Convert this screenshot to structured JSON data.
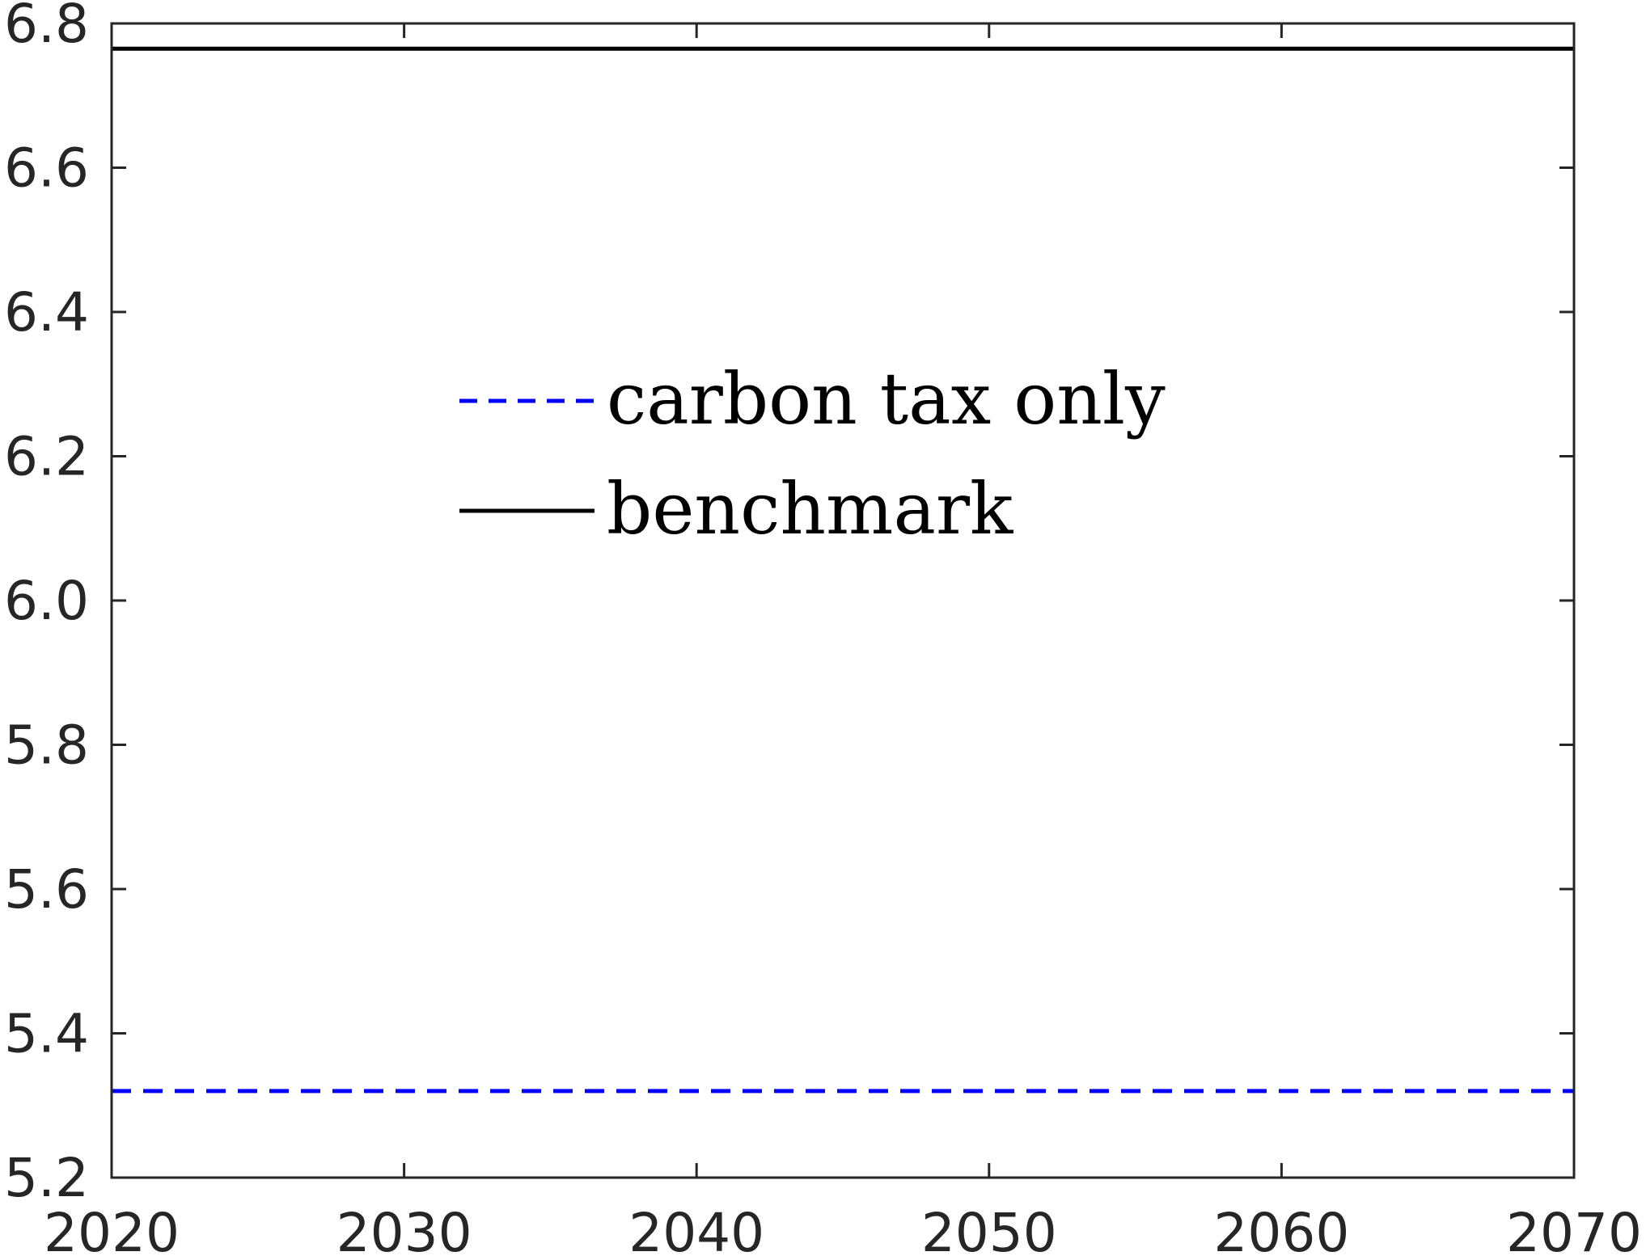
{
  "chart_data": {
    "type": "line",
    "title": "",
    "xlabel": "",
    "ylabel": "",
    "xlim": [
      2020,
      2070
    ],
    "ylim": [
      5.2,
      6.8
    ],
    "xticks": [
      "2020",
      "2030",
      "2040",
      "2050",
      "2060",
      "2070"
    ],
    "yticks": [
      "5.2",
      "5.4",
      "5.6",
      "5.8",
      "6.0",
      "6.2",
      "6.4",
      "6.6",
      "6.8"
    ],
    "grid": false,
    "legend_position": "upper-center",
    "series": [
      {
        "name": "carbon tax only",
        "style": "dashed",
        "color": "#0000ff",
        "x": [
          2020,
          2070
        ],
        "y": [
          5.32,
          5.32
        ]
      },
      {
        "name": "benchmark",
        "style": "solid",
        "color": "#000000",
        "x": [
          2020,
          2070
        ],
        "y": [
          6.765,
          6.765
        ]
      }
    ]
  }
}
